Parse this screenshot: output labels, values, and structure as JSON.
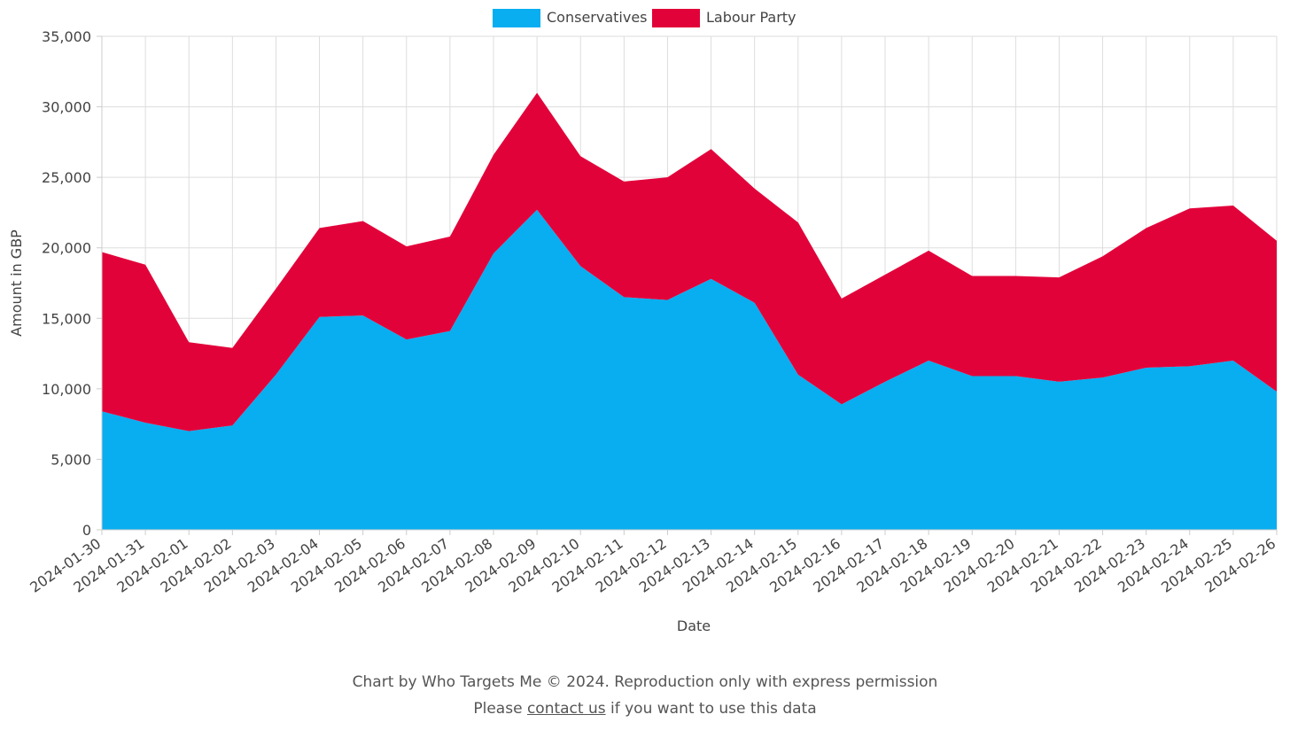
{
  "chart_data": {
    "type": "area",
    "stacked": true,
    "xlabel": "Date",
    "ylabel": "Amount in GBP",
    "ylim": [
      0,
      35000
    ],
    "yticks": [
      0,
      5000,
      10000,
      15000,
      20000,
      25000,
      30000,
      35000
    ],
    "ytick_labels": [
      "0",
      "5,000",
      "10,000",
      "15,000",
      "20,000",
      "25,000",
      "30,000",
      "35,000"
    ],
    "grid": true,
    "legend_position": "top-center",
    "x": [
      "2024-01-30",
      "2024-01-31",
      "2024-02-01",
      "2024-02-02",
      "2024-02-03",
      "2024-02-04",
      "2024-02-05",
      "2024-02-06",
      "2024-02-07",
      "2024-02-08",
      "2024-02-09",
      "2024-02-10",
      "2024-02-11",
      "2024-02-12",
      "2024-02-13",
      "2024-02-14",
      "2024-02-15",
      "2024-02-16",
      "2024-02-17",
      "2024-02-18",
      "2024-02-19",
      "2024-02-20",
      "2024-02-21",
      "2024-02-22",
      "2024-02-23",
      "2024-02-24",
      "2024-02-25",
      "2024-02-26"
    ],
    "series": [
      {
        "name": "Conservatives",
        "color": "#08aef0",
        "values": [
          8400,
          7600,
          7000,
          7400,
          11000,
          15100,
          15200,
          13500,
          14100,
          19600,
          22700,
          18700,
          16500,
          16300,
          17800,
          16100,
          11000,
          8900,
          10500,
          12000,
          10900,
          10900,
          10500,
          10800,
          11500,
          11600,
          12000,
          9800
        ]
      },
      {
        "name": "Labour Party",
        "color": "#e2023a",
        "values": [
          11300,
          11200,
          6300,
          5500,
          6100,
          6300,
          6700,
          6600,
          6700,
          7000,
          8300,
          7800,
          8200,
          8700,
          9200,
          8100,
          10800,
          7500,
          7600,
          7800,
          7100,
          7100,
          7400,
          8600,
          9900,
          11200,
          11000,
          10700
        ]
      }
    ]
  },
  "footer": {
    "credit": "Chart by Who Targets Me © 2024. Reproduction only with express permission",
    "prefix": "Please ",
    "link_text": "contact us",
    "suffix": " if you want to use this data"
  }
}
